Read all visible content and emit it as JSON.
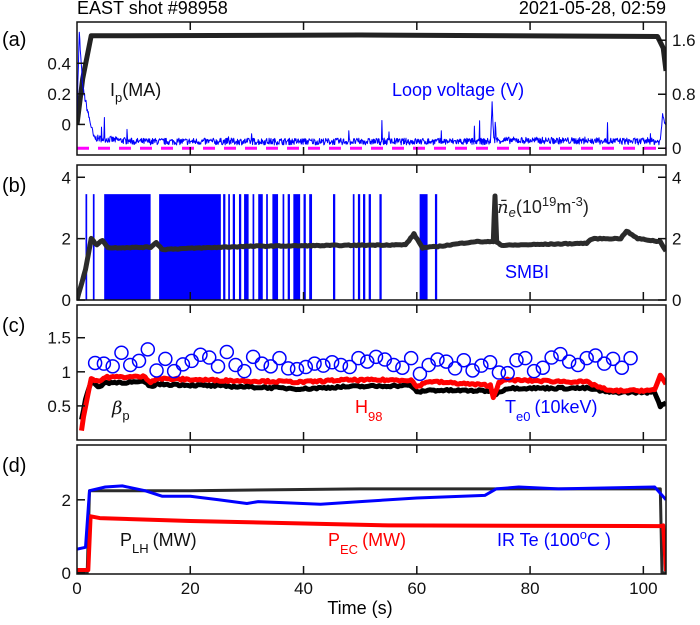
{
  "header": {
    "title": "EAST shot #98958",
    "date": "2021-05-28, 02:59"
  },
  "chart_data": [
    {
      "panel": "(a)",
      "type": "line",
      "xlim": [
        0,
        104
      ],
      "left_ylim": [
        -0.2,
        0.67
      ],
      "left_ticks": [
        "0",
        "0.2",
        "0.4"
      ],
      "left_tick_values": [
        0,
        0.2,
        0.4
      ],
      "right_ylim": [
        -0.1,
        1.87
      ],
      "right_ticks": [
        "0",
        "0.8",
        "1.6"
      ],
      "right_tick_values": [
        0,
        0.8,
        1.6
      ],
      "series": [
        {
          "name": "Ip",
          "label": "I",
          "sub": "p",
          "unit": "(MA)",
          "color": "#222222",
          "axis": "left",
          "points": [
            [
              0,
              0
            ],
            [
              1,
              0.3
            ],
            [
              2.5,
              0.58
            ],
            [
              50,
              0.585
            ],
            [
              102.5,
              0.575
            ],
            [
              103.5,
              0.5
            ],
            [
              104,
              0.35
            ]
          ]
        },
        {
          "name": "Loop voltage (V)",
          "label": "Loop voltage (V)",
          "color": "#0000ff",
          "axis": "right",
          "points": [
            [
              0,
              0.5
            ],
            [
              0.4,
              1.7
            ],
            [
              1,
              0.9
            ],
            [
              2,
              0.5
            ],
            [
              3,
              0.15
            ],
            [
              10,
              0.1
            ],
            [
              73,
              0.1
            ],
            [
              73.3,
              0.65
            ],
            [
              73.6,
              0.12
            ],
            [
              103,
              0.1
            ],
            [
              103.4,
              0.5
            ],
            [
              104,
              0.35
            ]
          ]
        },
        {
          "name": "zero reference",
          "color": "#ff00ff",
          "axis": "right",
          "dashed": true,
          "points": [
            [
              0,
              0
            ],
            [
              104,
              0
            ]
          ]
        }
      ]
    },
    {
      "panel": "(b)",
      "type": "line",
      "xlim": [
        0,
        104
      ],
      "left_ylim": [
        0,
        4.4
      ],
      "left_ticks": [
        "0",
        "2",
        "4"
      ],
      "left_tick_values": [
        0,
        2,
        4
      ],
      "right_ylim": [
        0,
        4.4
      ],
      "right_ticks": [
        "0",
        "2",
        "4"
      ],
      "right_tick_values": [
        0,
        2,
        4
      ],
      "series": [
        {
          "name": "ne",
          "label": "n̄",
          "label_e": "e",
          "unit_pre": "(10",
          "unit_sup": "19",
          "unit_mid": "m",
          "unit_sup2": "-3",
          "unit_post": ")",
          "color": "#2b2b2b",
          "points": [
            [
              0,
              0
            ],
            [
              1.5,
              1
            ],
            [
              2.5,
              2
            ],
            [
              3.5,
              1.8
            ],
            [
              4.5,
              1.95
            ],
            [
              5.5,
              1.7
            ],
            [
              13,
              1.72
            ],
            [
              14,
              1.88
            ],
            [
              15,
              1.65
            ],
            [
              30,
              1.75
            ],
            [
              58,
              1.8
            ],
            [
              59.5,
              2.15
            ],
            [
              61,
              1.7
            ],
            [
              64,
              1.75
            ],
            [
              70,
              1.9
            ],
            [
              73.5,
              1.9
            ],
            [
              73.8,
              3.4
            ],
            [
              74.1,
              1.9
            ],
            [
              75,
              1.78
            ],
            [
              90,
              1.85
            ],
            [
              91,
              2.0
            ],
            [
              96,
              2.0
            ],
            [
              97,
              2.25
            ],
            [
              99,
              2.0
            ],
            [
              103,
              1.9
            ],
            [
              104,
              1.6
            ]
          ]
        },
        {
          "name": "SMBI",
          "label": "SMBI",
          "color": "#0000ff",
          "pulse_height": 3.45,
          "intervals": [
            [
              1.5,
              1.8
            ],
            [
              2.8,
              3.1
            ],
            [
              4.8,
              13.0
            ],
            [
              14.5,
              25.4
            ],
            [
              25.8,
              26.2
            ],
            [
              26.7,
              27.0
            ],
            [
              27.5,
              27.9
            ],
            [
              28.6,
              29.0
            ],
            [
              29.5,
              30.3
            ],
            [
              31,
              31.3
            ],
            [
              32,
              32.8
            ],
            [
              33.4,
              33.7
            ],
            [
              34.5,
              35.5
            ],
            [
              36.3,
              36.6
            ],
            [
              37.2,
              37.6
            ],
            [
              38.2,
              39.4
            ],
            [
              40,
              40.4
            ],
            [
              41,
              41.5
            ],
            [
              45.2,
              45.6
            ],
            [
              48.7,
              49.0
            ],
            [
              49.6,
              50.0
            ],
            [
              50.5,
              50.9
            ],
            [
              51.5,
              51.9
            ],
            [
              53.4,
              53.8
            ],
            [
              60.5,
              61.9
            ],
            [
              63.2,
              63.6
            ]
          ]
        }
      ]
    },
    {
      "panel": "(c)",
      "type": "line+scatter",
      "xlim": [
        0,
        104
      ],
      "left_ylim": [
        0,
        1.98
      ],
      "left_ticks": [
        "0.5",
        "1",
        "1.5"
      ],
      "left_tick_values": [
        0.5,
        1,
        1.5
      ],
      "series": [
        {
          "name": "βp",
          "label": "β",
          "sub": "p",
          "color": "#000000",
          "points": [
            [
              0.8,
              0.3
            ],
            [
              1.5,
              0.6
            ],
            [
              2.5,
              0.85
            ],
            [
              4,
              0.78
            ],
            [
              5,
              0.84
            ],
            [
              12,
              0.85
            ],
            [
              13,
              0.78
            ],
            [
              14,
              0.82
            ],
            [
              30,
              0.78
            ],
            [
              40,
              0.75
            ],
            [
              47,
              0.78
            ],
            [
              59,
              0.8
            ],
            [
              60,
              0.7
            ],
            [
              62,
              0.73
            ],
            [
              73,
              0.72
            ],
            [
              74,
              0.68
            ],
            [
              76,
              0.76
            ],
            [
              90,
              0.76
            ],
            [
              94,
              0.7
            ],
            [
              102,
              0.7
            ],
            [
              103,
              0.5
            ],
            [
              104,
              0.55
            ]
          ]
        },
        {
          "name": "H98",
          "label": "H",
          "sub": "98",
          "color": "#ff0000",
          "points": [
            [
              0.8,
              0.15
            ],
            [
              1.5,
              0.5
            ],
            [
              2.5,
              0.9
            ],
            [
              4,
              0.86
            ],
            [
              5,
              0.92
            ],
            [
              12,
              0.93
            ],
            [
              13,
              0.85
            ],
            [
              14,
              0.9
            ],
            [
              28,
              0.87
            ],
            [
              40,
              0.85
            ],
            [
              47,
              0.88
            ],
            [
              59,
              0.88
            ],
            [
              60,
              0.78
            ],
            [
              62,
              0.86
            ],
            [
              73,
              0.8
            ],
            [
              73.5,
              0.62
            ],
            [
              74.5,
              0.85
            ],
            [
              76,
              0.88
            ],
            [
              90,
              0.85
            ],
            [
              94,
              0.72
            ],
            [
              102,
              0.73
            ],
            [
              103,
              0.95
            ],
            [
              104,
              0.82
            ]
          ]
        },
        {
          "name": "Te0 (10keV)",
          "label": "T",
          "sub": "e0",
          "unit": "(10keV)",
          "color": "#0000ff",
          "marker": "circle",
          "x_start": 3.2,
          "x_step": 1.55,
          "values": [
            1.13,
            1.12,
            1.08,
            1.28,
            1.1,
            1.16,
            1.33,
            1.02,
            1.19,
            1.01,
            1.11,
            1.16,
            1.25,
            1.21,
            1.08,
            1.29,
            1.1,
            1.01,
            1.22,
            1.12,
            1.08,
            1.2,
            1.05,
            1.04,
            1.07,
            1.12,
            1.09,
            1.14,
            1.1,
            1.07,
            1.2,
            1.15,
            1.22,
            1.18,
            1.1,
            1.06,
            1.2,
            0.97,
            1.1,
            1.18,
            1.15,
            1.05,
            1.17,
            1.02,
            1.09,
            1.14,
            0.99,
            0.98,
            1.17,
            1.2,
            1.01,
            1.06,
            1.21,
            1.26,
            1.15,
            1.1,
            1.2,
            1.24,
            1.12,
            1.19,
            1.06,
            1.2
          ]
        }
      ]
    },
    {
      "panel": "(d)",
      "type": "line",
      "xlim": [
        0,
        104
      ],
      "left_ylim": [
        -0.03,
        3.5
      ],
      "left_ticks": [
        "0",
        "2"
      ],
      "left_tick_values": [
        0,
        2
      ],
      "xticks": [
        "0",
        "20",
        "40",
        "60",
        "80",
        "100"
      ],
      "xtick_values": [
        0,
        20,
        40,
        60,
        80,
        100
      ],
      "xlabel": "Time (s)",
      "series": [
        {
          "name": "PLH (MW)",
          "label": "P",
          "sub": "LH",
          "unit": "(MW)",
          "color": "#2b2b2b",
          "points": [
            [
              0,
              0
            ],
            [
              1.8,
              0
            ],
            [
              2.2,
              2.25
            ],
            [
              20,
              2.25
            ],
            [
              50,
              2.3
            ],
            [
              103,
              2.3
            ],
            [
              103.3,
              0
            ],
            [
              104,
              0
            ]
          ]
        },
        {
          "name": "PEC (MW)",
          "label": "P",
          "sub": "EC",
          "unit": "(MW)",
          "color": "#ff0000",
          "points": [
            [
              0,
              0.08
            ],
            [
              2,
              0.08
            ],
            [
              2.4,
              1.55
            ],
            [
              4,
              1.5
            ],
            [
              20,
              1.42
            ],
            [
              55,
              1.3
            ],
            [
              103,
              1.28
            ],
            [
              103.5,
              1.3
            ],
            [
              104,
              0.05
            ]
          ]
        },
        {
          "name": "IR Te (100 °C)",
          "label": "IR Te (100",
          "sup": "o",
          "unit": "C )",
          "color": "#0000ff",
          "points": [
            [
              0,
              0.65
            ],
            [
              1.5,
              0.7
            ],
            [
              2.2,
              2.25
            ],
            [
              5,
              2.35
            ],
            [
              8,
              2.38
            ],
            [
              12,
              2.25
            ],
            [
              15,
              2.1
            ],
            [
              20,
              2.1
            ],
            [
              25,
              2.0
            ],
            [
              30,
              1.9
            ],
            [
              32,
              1.95
            ],
            [
              43,
              1.88
            ],
            [
              50,
              1.95
            ],
            [
              60,
              2.05
            ],
            [
              72,
              2.12
            ],
            [
              74,
              2.3
            ],
            [
              78,
              2.35
            ],
            [
              85,
              2.3
            ],
            [
              102,
              2.35
            ],
            [
              104,
              2.0
            ]
          ]
        }
      ]
    }
  ]
}
